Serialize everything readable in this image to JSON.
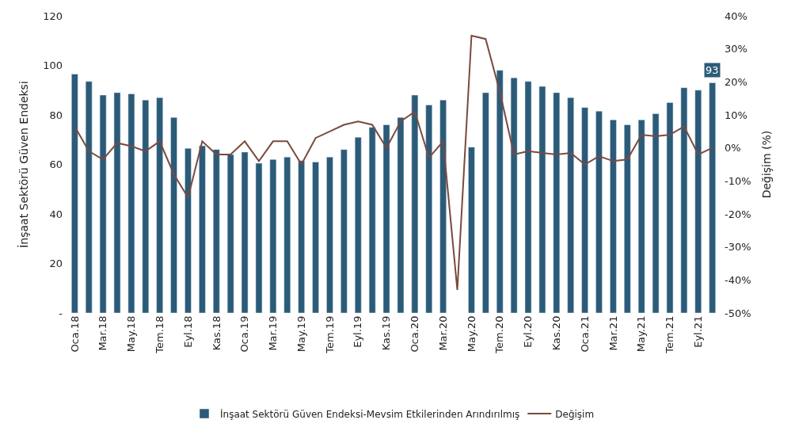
{
  "chart_data": {
    "type": "bar",
    "categories": [
      "Oca.18",
      null,
      "Mar.18",
      null,
      "May.18",
      null,
      "Tem.18",
      null,
      "Eyl.18",
      null,
      "Kas.18",
      null,
      "Oca.19",
      null,
      "Mar.19",
      null,
      "May.19",
      null,
      "Tem.19",
      null,
      "Eyl.19",
      null,
      "Kas.19",
      null,
      "Oca.20",
      null,
      "Mar.20",
      null,
      "May.20",
      null,
      "Tem.20",
      null,
      "Eyl.20",
      null,
      "Kas.20",
      null,
      "Oca.21",
      null,
      "Mar.21",
      null,
      "May.21",
      null,
      "Tem.21",
      null,
      "Eyl.21",
      null
    ],
    "series": [
      {
        "name": "İnşaat Sektörü Güven Endeksi-Mevsim Etkilerinden Arındırılmış",
        "color": "#2b5b78",
        "values": [
          96.5,
          93.5,
          88,
          89,
          88.5,
          86,
          87,
          79,
          66.5,
          67.5,
          66,
          64,
          65,
          60.5,
          62,
          63,
          61.5,
          61,
          63,
          66,
          71,
          75,
          76,
          79,
          88,
          84,
          86,
          null,
          67,
          89,
          98,
          95,
          93.5,
          91.5,
          89,
          87,
          83,
          81.5,
          78,
          76,
          78,
          80.5,
          85,
          91,
          90,
          93
        ],
        "value_labels": [
          null,
          null,
          null,
          null,
          null,
          null,
          null,
          null,
          null,
          null,
          null,
          null,
          null,
          null,
          null,
          null,
          null,
          null,
          null,
          null,
          null,
          null,
          null,
          null,
          null,
          null,
          null,
          null,
          null,
          null,
          null,
          null,
          null,
          null,
          null,
          null,
          null,
          null,
          null,
          null,
          null,
          null,
          null,
          null,
          null,
          "93"
        ]
      },
      {
        "name": "Değişim",
        "type": "line",
        "axis": "y2",
        "color": "#7a4a3e",
        "values": [
          6.5,
          -1,
          -3.5,
          1.5,
          0.5,
          -1,
          2,
          -8,
          -15,
          2,
          -2,
          -2,
          2,
          -4,
          2,
          2,
          -5,
          3,
          5,
          7,
          8,
          7,
          0,
          8,
          11,
          -3,
          2,
          -43,
          34,
          33,
          17,
          -2,
          -1,
          -1.5,
          -2,
          -1.5,
          -5,
          -2.5,
          -4,
          -3.5,
          4,
          3.5,
          4,
          6.5,
          -2,
          0
        ]
      }
    ],
    "ylabel": "İnşaat Sektörü Güven Endeksi",
    "y2label": "Değişim (%)",
    "ylim": [
      0,
      120
    ],
    "yticks": [
      {
        "value": 0,
        "label": "-"
      },
      20,
      40,
      60,
      80,
      100,
      120
    ],
    "y2lim": [
      -50,
      40
    ],
    "y2ticks": [
      {
        "value": -50,
        "label": "-50%"
      },
      {
        "value": -40,
        "label": "-40%"
      },
      {
        "value": -30,
        "label": "-30%"
      },
      {
        "value": -20,
        "label": "-20%"
      },
      {
        "value": -10,
        "label": "-10%"
      },
      {
        "value": 0,
        "label": "0%"
      },
      {
        "value": 10,
        "label": "10%"
      },
      {
        "value": 20,
        "label": "20%"
      },
      {
        "value": 30,
        "label": "30%"
      },
      {
        "value": 40,
        "label": "40%"
      }
    ],
    "legend": "bottom"
  }
}
